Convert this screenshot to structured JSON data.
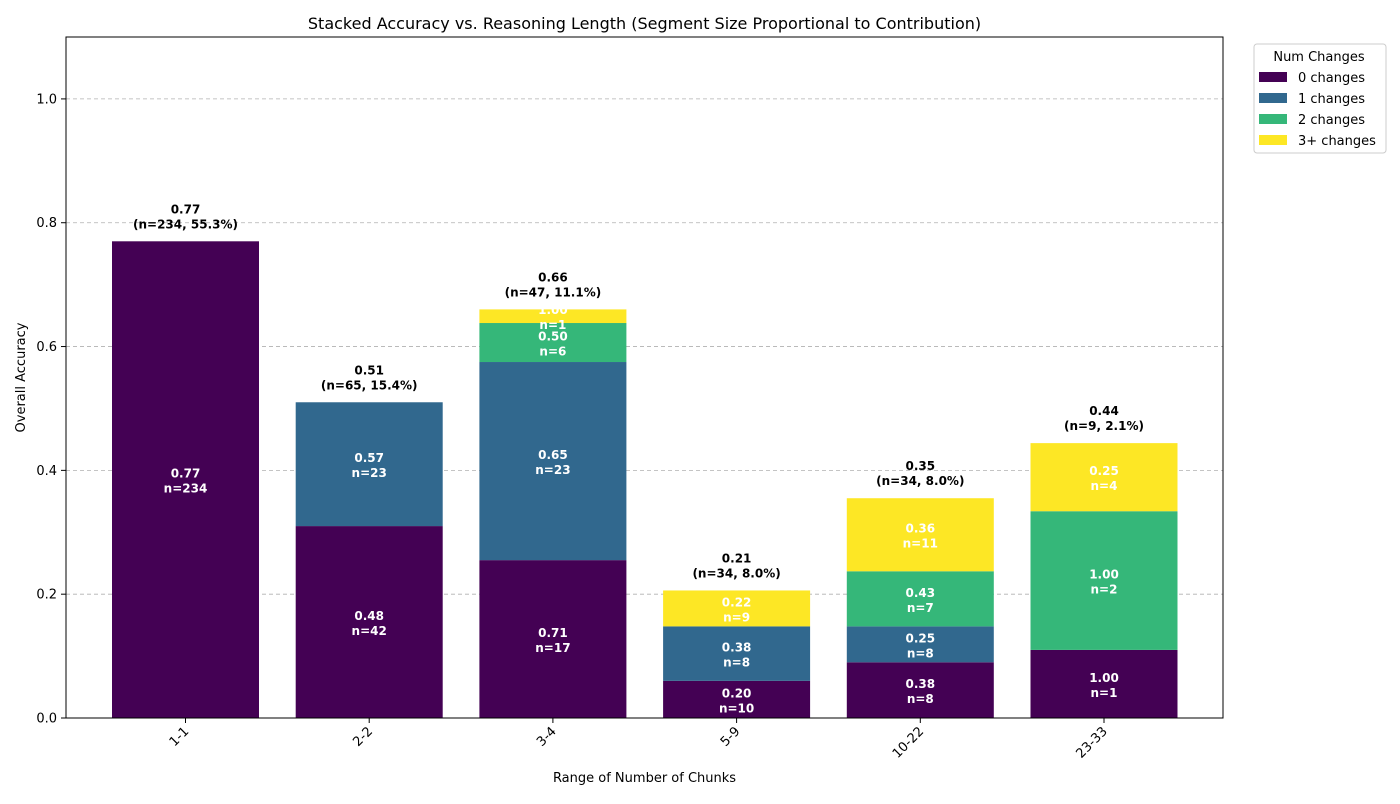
{
  "chart_data": {
    "type": "bar",
    "stacked": true,
    "title": "Stacked Accuracy vs. Reasoning Length (Segment Size Proportional to Contribution)",
    "xlabel": "Range of Number of Chunks",
    "ylabel": "Overall Accuracy",
    "ylim": [
      0,
      1.1
    ],
    "yticks": [
      0.0,
      0.2,
      0.4,
      0.6,
      0.8,
      1.0
    ],
    "ytick_labels": [
      "0.0",
      "0.2",
      "0.4",
      "0.6",
      "0.8",
      "1.0"
    ],
    "grid": "y dashed",
    "categories": [
      "1-1",
      "2-2",
      "3-4",
      "5-9",
      "10-22",
      "23-33"
    ],
    "legend": {
      "title": "Num Changes",
      "placement": "outside top-right",
      "entries": [
        "0 changes",
        "1 changes",
        "2 changes",
        "3+ changes"
      ]
    },
    "series": [
      {
        "name": "0 changes",
        "color": "#440154",
        "contribution": [
          0.77,
          0.31,
          0.255,
          0.06,
          0.09,
          0.11
        ],
        "labels": [
          [
            "0.77",
            "n=234"
          ],
          [
            "0.48",
            "n=42"
          ],
          [
            "0.71",
            "n=17"
          ],
          [
            "0.20",
            "n=10"
          ],
          [
            "0.38",
            "n=8"
          ],
          [
            "1.00",
            "n=1"
          ]
        ]
      },
      {
        "name": "1 changes",
        "color": "#31688e",
        "contribution": [
          0,
          0.2,
          0.32,
          0.088,
          0.058,
          0
        ],
        "labels": [
          null,
          [
            "0.57",
            "n=23"
          ],
          [
            "0.65",
            "n=23"
          ],
          [
            "0.38",
            "n=8"
          ],
          [
            "0.25",
            "n=8"
          ],
          null
        ]
      },
      {
        "name": "2 changes",
        "color": "#35b779",
        "contribution": [
          0,
          0,
          0.063,
          0,
          0.089,
          0.224
        ],
        "labels": [
          null,
          null,
          [
            "0.50",
            "n=6"
          ],
          null,
          [
            "0.43",
            "n=7"
          ],
          [
            "1.00",
            "n=2"
          ]
        ]
      },
      {
        "name": "3+ changes",
        "color": "#fde725",
        "contribution": [
          0,
          0,
          0.022,
          0.058,
          0.118,
          0.11
        ],
        "labels": [
          null,
          null,
          [
            "1.00",
            "n=1"
          ],
          [
            "0.22",
            "n=9"
          ],
          [
            "0.36",
            "n=11"
          ],
          [
            "0.25",
            "n=4"
          ]
        ]
      }
    ],
    "totals": [
      [
        "0.77",
        "(n=234, 55.3%)"
      ],
      [
        "0.51",
        "(n=65, 15.4%)"
      ],
      [
        "0.66",
        "(n=47, 11.1%)"
      ],
      [
        "0.21",
        "(n=34, 8.0%)"
      ],
      [
        "0.35",
        "(n=34, 8.0%)"
      ],
      [
        "0.44",
        "(n=9, 2.1%)"
      ]
    ]
  }
}
